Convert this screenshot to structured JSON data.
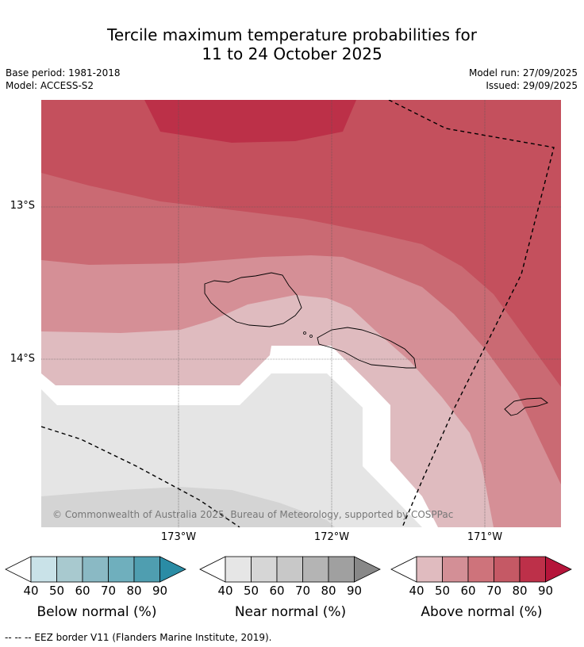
{
  "title_line1": "Tercile maximum temperature probabilities for",
  "title_line2": "11 to 24 October 2025",
  "base_period": "Base period: 1981-2018",
  "model": "Model: ACCESS-S2",
  "model_run": "Model run: 27/09/2025",
  "issued": "Issued: 29/09/2025",
  "lat_labels": [
    "13°S",
    "14°S"
  ],
  "lon_labels": [
    "173°W",
    "172°W",
    "171°W"
  ],
  "copyright": "© Commonwealth of Australia 2025, Bureau of Meteorology, supported by COSPPac",
  "colorbars": [
    {
      "title": "Below normal (%)",
      "ticks": [
        "40",
        "50",
        "60",
        "70",
        "80",
        "90"
      ],
      "colors": [
        "#c9e2e8",
        "#a8c9cf",
        "#8ab9c4",
        "#6fafbd",
        "#4f9eb0",
        "#2a8ca5"
      ]
    },
    {
      "title": "Near normal (%)",
      "ticks": [
        "40",
        "50",
        "60",
        "70",
        "80",
        "90"
      ],
      "colors": [
        "#e6e6e6",
        "#d6d6d6",
        "#c8c8c8",
        "#b4b4b4",
        "#a0a0a0",
        "#888888"
      ]
    },
    {
      "title": "Above normal (%)",
      "ticks": [
        "40",
        "50",
        "60",
        "70",
        "80",
        "90"
      ],
      "colors": [
        "#e0bbbf",
        "#d38f96",
        "#ce737b",
        "#c55965",
        "#bd3049",
        "#b5153a"
      ]
    }
  ],
  "footnote": "--  --  -- EEZ border V11 (Flanders Marine Institute, 2019).",
  "colors": {
    "above_80": "#bc3048",
    "above_70": "#c55965",
    "above_60": "#ce737b",
    "above_50": "#d38f96",
    "above_40": "#e0bbbf",
    "near_40": "#e6e6e6",
    "near_50": "#d6d6d6"
  }
}
